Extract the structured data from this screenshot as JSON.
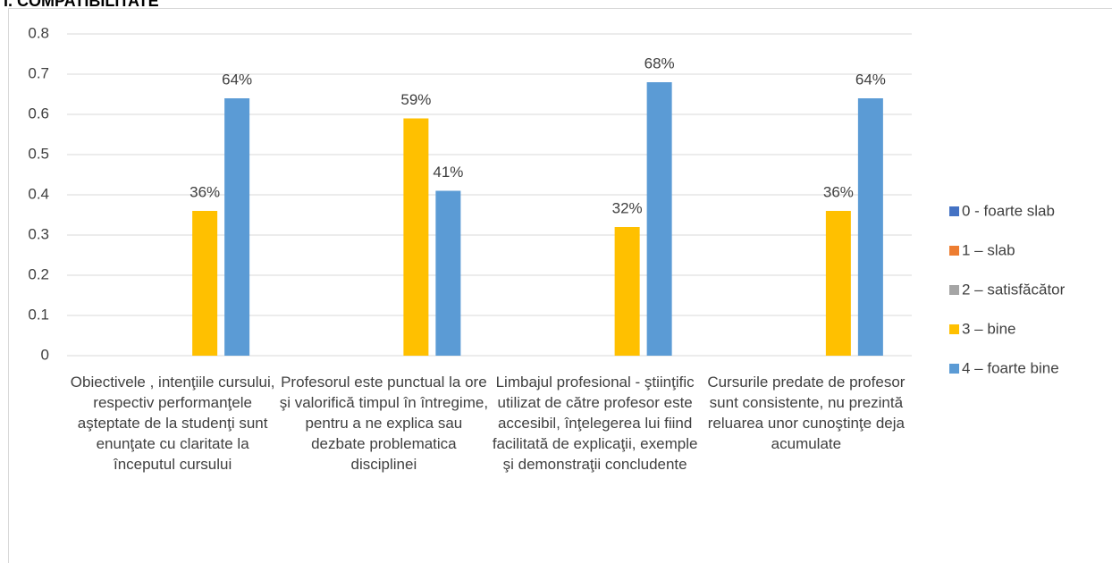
{
  "chart_data": {
    "type": "bar",
    "title": "I. COMPATIBILITATE",
    "categories": [
      "Obiectivele , intenţiile cursului, respectiv performanţele aşteptate de la studenţi sunt enunţate cu claritate la începutul cursului",
      "Profesorul este punctual la ore şi valorifică timpul în întregime, pentru a ne explica sau dezbate problematica disciplinei",
      "Limbajul profesional - ştiinţific utilizat de către profesor este accesibil, înţelegerea lui fiind facilitată de explicaţii, exemple şi demonstraţii concludente",
      "Cursurile predate de profesor sunt consistente, nu prezintă reluarea unor cunoştinţe deja acumulate"
    ],
    "series": [
      {
        "name": "0 - foarte slab",
        "color": "#4472c4",
        "values": [
          null,
          null,
          null,
          null
        ]
      },
      {
        "name": "1 – slab",
        "color": "#ed7d31",
        "values": [
          null,
          null,
          null,
          null
        ]
      },
      {
        "name": "2 – satisfăcător",
        "color": "#a5a5a5",
        "values": [
          null,
          null,
          null,
          null
        ]
      },
      {
        "name": "3 – bine",
        "color": "#ffc000",
        "values": [
          0.36,
          0.59,
          0.32,
          0.36
        ],
        "value_labels": [
          "36%",
          "59%",
          "32%",
          "36%"
        ]
      },
      {
        "name": "4 – foarte bine",
        "color": "#5b9bd5",
        "values": [
          0.64,
          0.41,
          0.68,
          0.64
        ],
        "value_labels": [
          "64%",
          "41%",
          "68%",
          "64%"
        ]
      }
    ],
    "ylim": [
      0,
      0.8
    ],
    "yticks": [
      0,
      0.1,
      0.2,
      0.3,
      0.4,
      0.5,
      0.6,
      0.7,
      0.8
    ],
    "grid": true,
    "legend": "right"
  }
}
